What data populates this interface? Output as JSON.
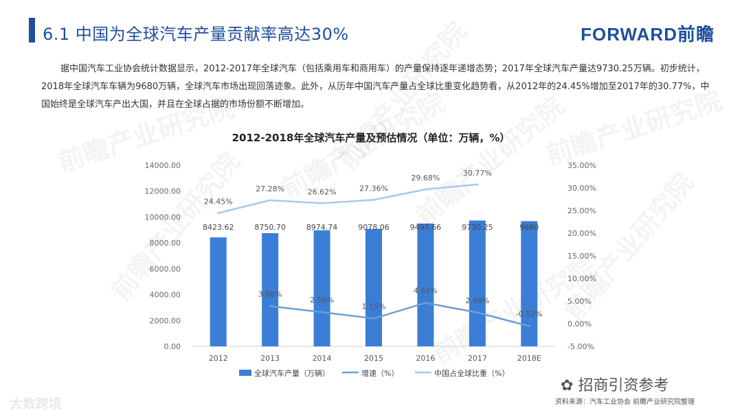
{
  "header": {
    "title": "6.1 中国为全球汽车产量贡献率高达30%",
    "brand": "FORWARD前瞻"
  },
  "intro_text": "据中国汽车工业协会统计数据显示，2012-2017年全球汽车（包括乘用车和商用车）的产量保持逐年递增态势；2017年全球汽车产量达9730.25万辆。初步统计，2018年全球汽车车辆为9680万辆，全球汽车市场出现回落迹象。此外，从历年中国汽车产量占全球比重变化趋势看，从2012年的24.45%增加至2017年的30.77%，中国始终是全球汽车产出大国，并且在全球占据的市场份额不断增加。",
  "chart_data": {
    "type": "bar",
    "title": "2012-2018年全球汽车产量及预估情况（单位：万辆，%）",
    "categories": [
      "2012",
      "2013",
      "2014",
      "2015",
      "2016",
      "2017",
      "2018E"
    ],
    "series": [
      {
        "name": "全球汽车产量（万辆）",
        "type": "bar",
        "axis": "left",
        "values": [
          8423.62,
          8750.7,
          8974.74,
          9078.06,
          9497.66,
          9730.25,
          9680
        ],
        "labels": [
          "8423.62",
          "8750.70",
          "8974.74",
          "9078.06",
          "9497.66",
          "9730.25",
          "9680"
        ],
        "color": "#3a7ed6"
      },
      {
        "name": "增速（%）",
        "type": "line",
        "axis": "right",
        "values": [
          null,
          3.88,
          2.56,
          1.15,
          4.62,
          2.46,
          -0.52
        ],
        "labels": [
          "",
          "3.88%",
          "2.56%",
          "1.15%",
          "4.62%",
          "2.46%",
          "-0.52%"
        ],
        "color": "#6c9fd4"
      },
      {
        "name": "中国占全球比重（%）",
        "type": "line",
        "axis": "right",
        "values": [
          24.45,
          27.28,
          26.62,
          27.36,
          29.68,
          30.77,
          null
        ],
        "labels": [
          "24.45%",
          "27.28%",
          "26.62%",
          "27.36%",
          "29.68%",
          "30.77%",
          ""
        ],
        "color": "#a9c8ec"
      }
    ],
    "y_left": {
      "min": 0,
      "max": 14000,
      "ticks": [
        "0.00",
        "2000.00",
        "4000.00",
        "6000.00",
        "8000.00",
        "10000.00",
        "12000.00",
        "14000.00"
      ]
    },
    "y_right": {
      "min": -5,
      "max": 35,
      "ticks": [
        "-5.00%",
        "0.00%",
        "5.00%",
        "10.00%",
        "15.00%",
        "20.00%",
        "25.00%",
        "30.00%",
        "35.00%"
      ]
    },
    "grid": false,
    "legend_position": "bottom"
  },
  "watermark": "前瞻产业研究院",
  "footer": {
    "watermark_bottom": "大数跨境",
    "wechat_label": "招商引资参考",
    "source": "资料来源：汽车工业协会 前瞻产业研究院整理"
  },
  "colors": {
    "brand": "#1f4e9b",
    "bar": "#3a7ed6",
    "growth_line": "#6c9fd4",
    "share_line": "#a9c8ec"
  }
}
